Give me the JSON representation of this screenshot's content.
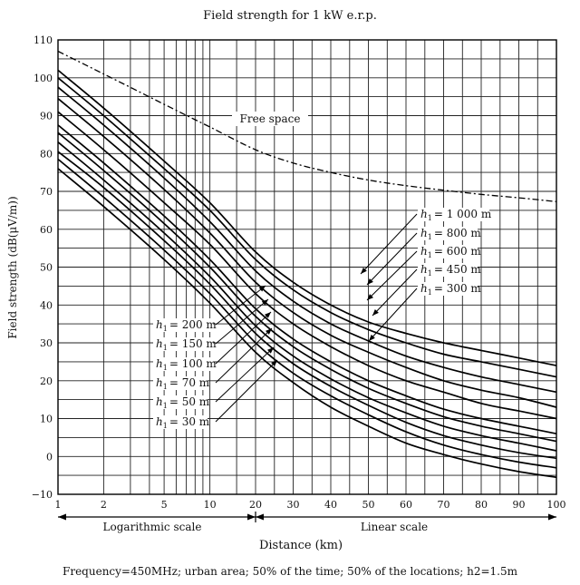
{
  "chart_data": {
    "type": "line",
    "title": "Field strength for 1 kW e.r.p.",
    "xlabel": "Distance (km)",
    "ylabel": "Field strength (dB(μV/m))",
    "caption": "Frequency=450MHz; urban area; 50% of the time; 50% of the locations; h2=1.5m",
    "ylim": [
      -10,
      110
    ],
    "x_axis": {
      "log_region": {
        "from": 1,
        "to": 20,
        "label": "Logarithmic scale"
      },
      "linear_region": {
        "from": 20,
        "to": 100,
        "label": "Linear scale"
      },
      "tick_labels": [
        "1",
        "2",
        "5",
        "10",
        "20",
        "30",
        "40",
        "50",
        "60",
        "70",
        "80",
        "90",
        "100"
      ],
      "tick_values": [
        1,
        2,
        5,
        10,
        20,
        30,
        40,
        50,
        60,
        70,
        80,
        90,
        100
      ]
    },
    "y_tick_labels": [
      "110",
      "100",
      "90",
      "80",
      "70",
      "60",
      "50",
      "40",
      "30",
      "20",
      "10",
      "0",
      "−10"
    ],
    "y_tick_values": [
      110,
      100,
      90,
      80,
      70,
      60,
      50,
      40,
      30,
      20,
      10,
      0,
      -10
    ],
    "grid": true,
    "free_space_label": "Free space",
    "h1_symbol": "h",
    "h1_subscript": "1",
    "h1_labels_right": [
      "= 1 000 m",
      "= 800 m",
      "= 600 m",
      "= 450 m",
      "= 300 m"
    ],
    "h1_labels_left": [
      "= 200 m",
      "= 150 m",
      "= 100 m",
      "= 70 m",
      "= 50 m",
      "= 30 m"
    ],
    "x": [
      1,
      2,
      5,
      10,
      20,
      30,
      40,
      50,
      60,
      70,
      80,
      90,
      100
    ],
    "series": [
      {
        "name": "Free space",
        "values": [
          107,
          101,
          93,
          87,
          81,
          77.5,
          75,
          73,
          71.5,
          70.3,
          69.2,
          68.3,
          67.3
        ],
        "style": "dashdot"
      },
      {
        "name": "h1 = 1 000 m",
        "values": [
          102,
          92,
          78,
          67,
          54,
          46,
          40,
          35.5,
          32.5,
          30,
          28,
          26,
          24
        ]
      },
      {
        "name": "h1 = 800 m",
        "values": [
          100,
          90,
          76,
          65,
          52,
          44,
          38,
          33.5,
          30,
          27,
          25,
          23,
          21
        ]
      },
      {
        "name": "h1 = 600 m",
        "values": [
          97.5,
          87.5,
          73.5,
          62,
          49,
          41,
          35,
          30.5,
          26.5,
          23.5,
          21,
          19,
          17
        ]
      },
      {
        "name": "h1 = 450 m",
        "values": [
          94.5,
          84.5,
          70.5,
          59,
          46,
          38,
          32,
          27.5,
          23.5,
          20,
          17.5,
          15.5,
          13
        ]
      },
      {
        "name": "h1 = 300 m",
        "values": [
          91,
          81,
          67,
          56,
          43,
          35,
          29,
          24,
          20,
          17,
          14,
          12,
          10
        ]
      },
      {
        "name": "h1 = 200 m",
        "values": [
          87.5,
          77.5,
          63.5,
          52,
          39,
          31,
          25,
          20,
          16,
          12.5,
          10,
          8,
          6
        ]
      },
      {
        "name": "h1 = 150 m",
        "values": [
          85.5,
          75.5,
          61.5,
          50,
          37,
          29,
          23,
          18,
          14,
          10.5,
          8,
          6,
          4
        ]
      },
      {
        "name": "h1 = 100 m",
        "values": [
          83,
          73,
          59,
          47.5,
          34.5,
          26.5,
          20.5,
          15.5,
          11.5,
          8,
          5.5,
          3.5,
          1.5
        ]
      },
      {
        "name": "h1 = 70 m",
        "values": [
          80.5,
          71,
          57,
          45.5,
          32.5,
          24.5,
          18.5,
          13.5,
          9,
          5.5,
          3,
          1,
          -0.5
        ]
      },
      {
        "name": "h1 = 50 m",
        "values": [
          78.5,
          68.5,
          54.5,
          43,
          30,
          22,
          16,
          11,
          6.5,
          3,
          0.5,
          -1.5,
          -3
        ]
      },
      {
        "name": "h1 = 30 m",
        "values": [
          76,
          66,
          52,
          40.5,
          27.5,
          19.5,
          13,
          8,
          3.5,
          0.5,
          -2,
          -4,
          -5.5
        ]
      }
    ]
  }
}
